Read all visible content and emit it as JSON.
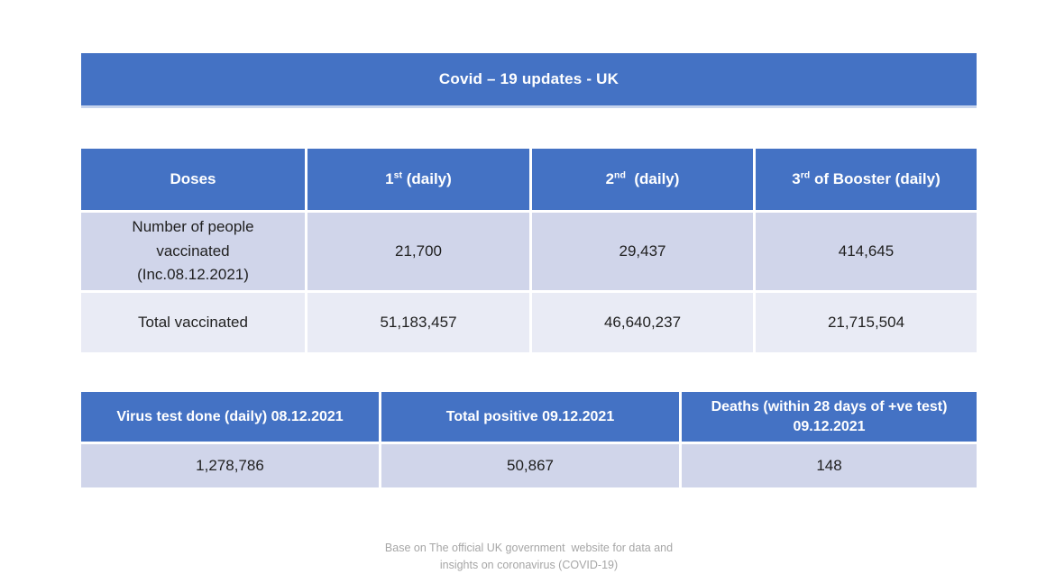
{
  "title": "Covid – 19 updates - UK",
  "colors": {
    "header_blue": "#4472C4",
    "band_dark": "#D0D5EA",
    "band_light": "#E9EBF5",
    "text_dark": "#1F1F1F",
    "footer_gray": "#A6A6A6",
    "background": "#FFFFFF"
  },
  "vaccination_table": {
    "headers": [
      {
        "base": "Doses",
        "sup": "",
        "rest": ""
      },
      {
        "base": "1",
        "sup": "st",
        "rest": " (daily)"
      },
      {
        "base": "2",
        "sup": "nd",
        "rest": "  (daily)"
      },
      {
        "base": "3",
        "sup": "rd",
        "rest": " of Booster (daily)"
      }
    ],
    "rows": [
      {
        "label": "Number of people\nvaccinated\n(Inc.08.12.2021)",
        "values": [
          "21,700",
          "29,437",
          "414,645"
        ]
      },
      {
        "label": "Total vaccinated",
        "values": [
          "51,183,457",
          "46,640,237",
          "21,715,504"
        ]
      }
    ]
  },
  "tests_table": {
    "headers": [
      "Virus test done (daily) 08.12.2021",
      "Total positive 09.12.2021",
      "Deaths (within 28 days of +ve test)\n09.12.2021"
    ],
    "values": [
      "1,278,786",
      "50,867",
      "148"
    ]
  },
  "footer": {
    "line1": "Base on The official UK government  website for data and",
    "line2": "insights on coronavirus (COVID-19)"
  }
}
